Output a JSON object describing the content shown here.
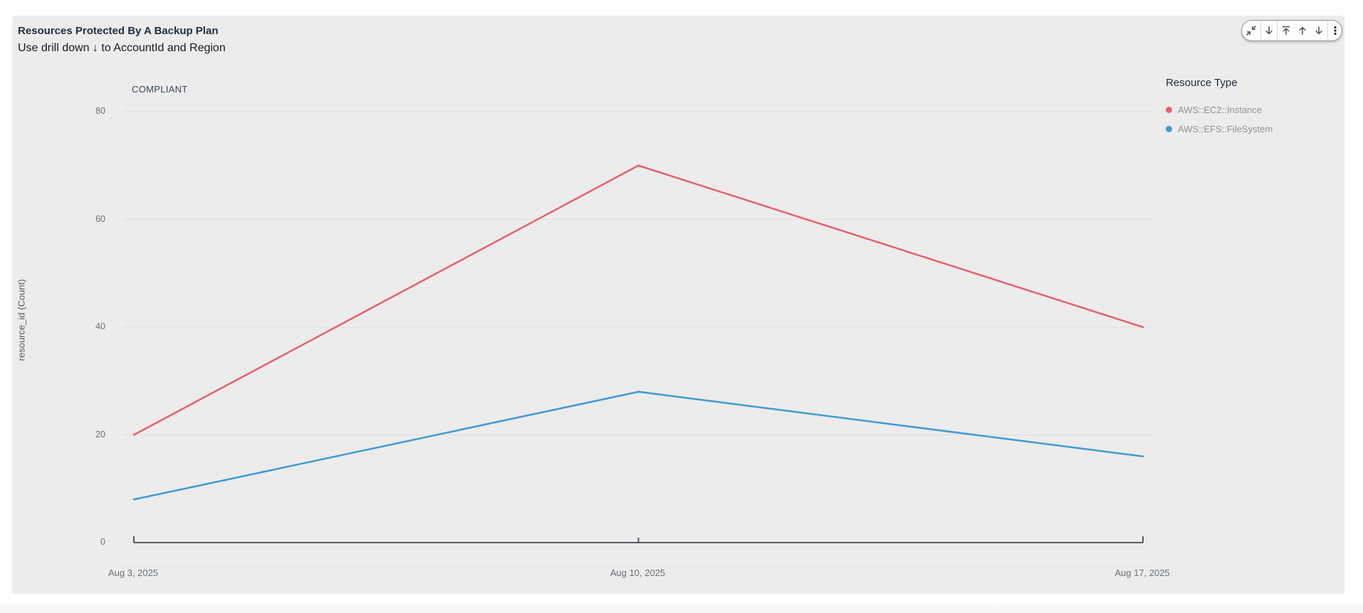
{
  "widget": {
    "title": "Resources Protected By A Backup Plan",
    "subtitle": "Use drill down ↓ to AccountId and Region",
    "panel_label": "COMPLIANT"
  },
  "toolbar": {
    "icons": [
      "restore-size",
      "drill-down",
      "drill-up-to-top",
      "drill-up",
      "drill-down",
      "menu"
    ]
  },
  "legend": {
    "title": "Resource Type"
  },
  "chart_data": {
    "type": "line",
    "title": "Resources Protected By A Backup Plan",
    "panel": "COMPLIANT",
    "categories": [
      "Aug 3, 2025",
      "Aug 10, 2025",
      "Aug 17, 2025"
    ],
    "series": [
      {
        "name": "AWS::EC2::Instance",
        "color": "#e4626e",
        "values": [
          20,
          70,
          40
        ]
      },
      {
        "name": "AWS::EFS::FileSystem",
        "color": "#3f9bd5",
        "values": [
          8,
          28,
          16
        ]
      }
    ],
    "xlabel": "",
    "ylabel": "resource_id (Count)",
    "ylim": [
      0,
      80
    ],
    "yticks": [
      0,
      20,
      40,
      60,
      80
    ],
    "grid": true,
    "legend_position": "right",
    "axis_color": "#545b64",
    "gridline_color": "#e0dede",
    "background_color": "#ececec"
  }
}
